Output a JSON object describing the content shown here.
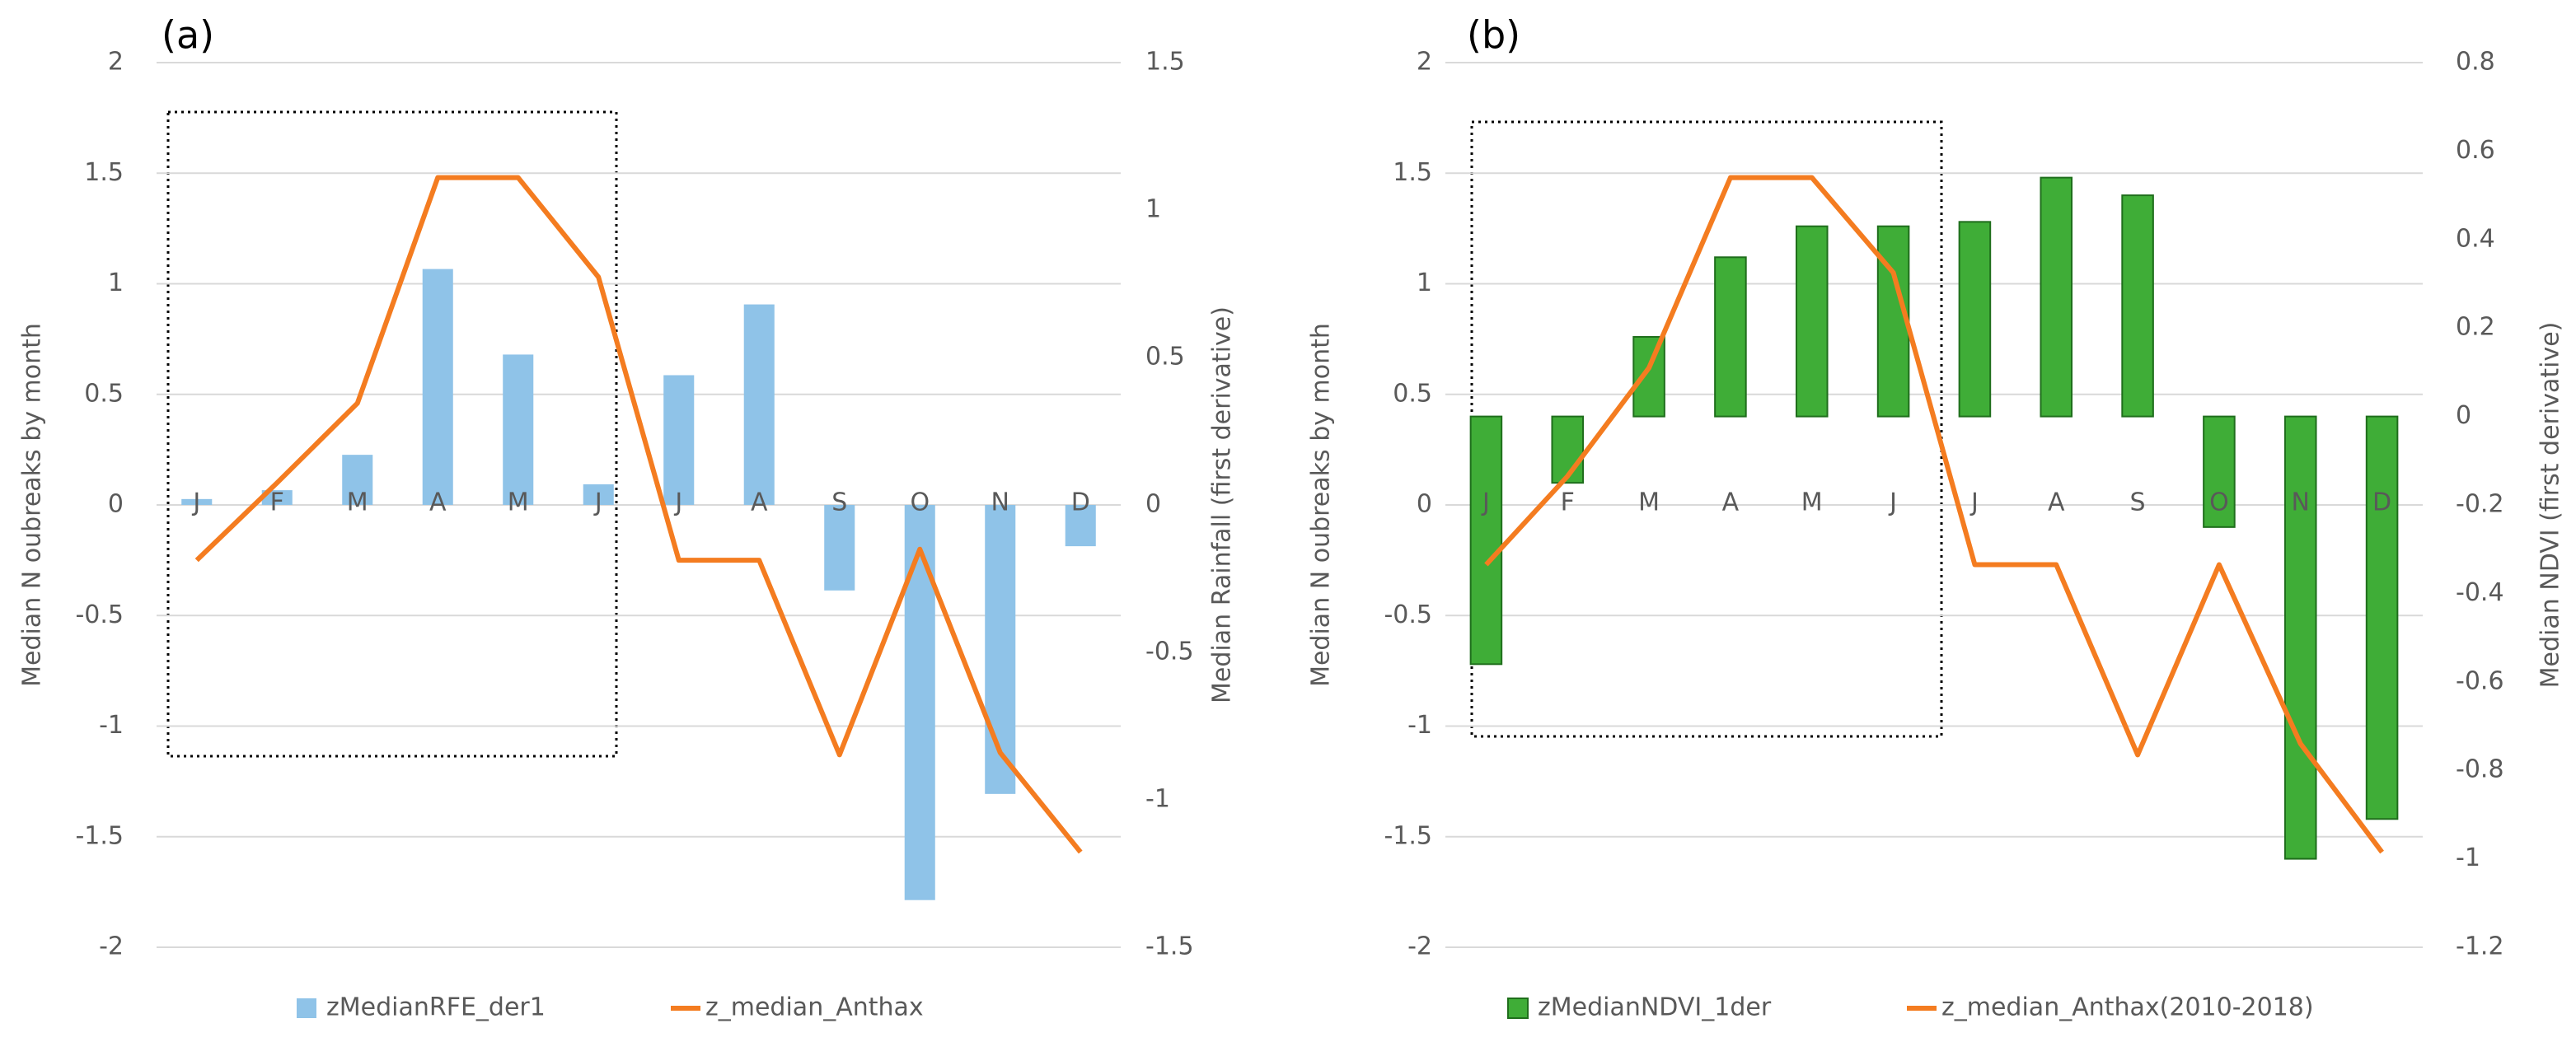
{
  "chart_data": [
    {
      "type": "combo",
      "title": "(a)",
      "y_label": "Median N oubreaks by month",
      "y2_label": "Median Rainfall (first derivative)",
      "categories": [
        "J",
        "F",
        "M",
        "A",
        "M",
        "J",
        "J",
        "A",
        "S",
        "O",
        "N",
        "D"
      ],
      "ylim": [
        -2,
        2
      ],
      "yticks": [
        2,
        1.5,
        1,
        0.5,
        0,
        -0.5,
        -1,
        -1.5,
        -2
      ],
      "y2lim": [
        -1.5,
        1.5
      ],
      "y2ticks": [
        1.5,
        1,
        0.5,
        0,
        -0.5,
        -1,
        -1.5
      ],
      "grid": true,
      "series": [
        {
          "name": "zMedianRFE_der1",
          "type": "bar",
          "axis": "y2",
          "color": "#8fc3e8",
          "values": [
            0.02,
            0.05,
            0.17,
            0.8,
            0.51,
            0.07,
            0.44,
            0.68,
            -0.29,
            -1.34,
            -0.98,
            -0.14
          ]
        },
        {
          "name": "z_median_Anthax",
          "type": "line",
          "color": "#f47c20",
          "values": [
            -0.25,
            0.1,
            0.46,
            1.48,
            1.48,
            1.03,
            -0.25,
            -0.25,
            -1.13,
            -0.2,
            -1.12,
            -1.57
          ]
        }
      ]
    },
    {
      "type": "combo",
      "title": "(b)",
      "y_label": "Median N oubreaks by month",
      "y2_label": "Median NDVI (first derivative)",
      "categories": [
        "J",
        "F",
        "M",
        "A",
        "M",
        "J",
        "J",
        "A",
        "S",
        "O",
        "N",
        "D"
      ],
      "ylim": [
        -2,
        2
      ],
      "yticks": [
        2,
        1.5,
        1,
        0.5,
        0,
        -0.5,
        -1,
        -1.5,
        -2
      ],
      "y2lim": [
        -1.2,
        0.8
      ],
      "y2ticks": [
        0.8,
        0.6,
        0.4,
        0.2,
        0,
        -0.2,
        -0.4,
        -0.6,
        -0.8,
        -1,
        -1.2
      ],
      "grid": true,
      "series": [
        {
          "name": "zMedianNDVI_1der",
          "type": "bar",
          "axis": "y2",
          "color": "#3fad37",
          "values": [
            -0.56,
            -0.15,
            0.18,
            0.36,
            0.43,
            0.43,
            0.44,
            0.54,
            0.5,
            -0.25,
            -1.0,
            -0.91
          ]
        },
        {
          "name": "z_median_Anthax(2010-2018)",
          "type": "line",
          "color": "#f47c20",
          "values": [
            -0.27,
            0.13,
            0.62,
            1.48,
            1.48,
            1.05,
            -0.27,
            -0.27,
            -1.13,
            -0.27,
            -1.08,
            -1.57
          ]
        }
      ]
    }
  ]
}
